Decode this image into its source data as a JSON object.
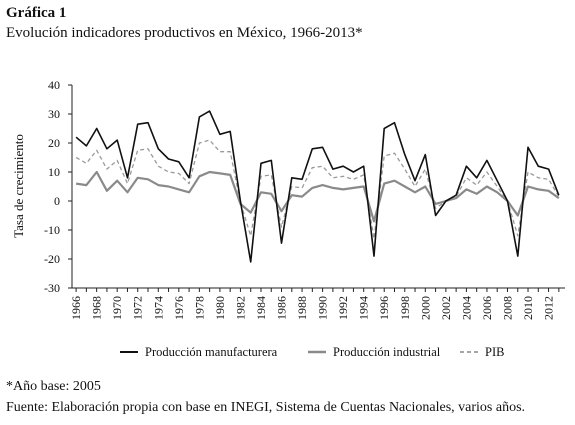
{
  "figure_label": "Gráfica 1",
  "subtitle": "Evolución indicadores productivos en México, 1966-2013*",
  "note": "*Año base: 2005",
  "source": "Fuente: Elaboración propia con base en INEGI, Sistema de Cuentas Nacionales, varios años.",
  "colors": {
    "manufactura": "#111111",
    "industrial": "#8a8a8a",
    "pib": "#9a9a9a"
  },
  "chart_data": {
    "type": "line",
    "title": "",
    "xlabel": "",
    "ylabel": "Tasa de crecimiento",
    "ylim": [
      -30,
      40
    ],
    "yticks": [
      -30,
      -20,
      -10,
      0,
      10,
      20,
      30,
      40
    ],
    "xticks": [
      "1966",
      "1968",
      "1970",
      "1972",
      "1974",
      "1976",
      "1978",
      "1980",
      "1982",
      "1984",
      "1986",
      "1988",
      "1990",
      "1992",
      "1994",
      "1996",
      "1998",
      "2000",
      "2002",
      "2004",
      "2006",
      "2008",
      "2010",
      "2012"
    ],
    "x": [
      1966,
      1967,
      1968,
      1969,
      1970,
      1971,
      1972,
      1973,
      1974,
      1975,
      1976,
      1977,
      1978,
      1979,
      1980,
      1981,
      1982,
      1983,
      1984,
      1985,
      1986,
      1987,
      1988,
      1989,
      1990,
      1991,
      1992,
      1993,
      1994,
      1995,
      1996,
      1997,
      1998,
      1999,
      2000,
      2001,
      2002,
      2003,
      2004,
      2005,
      2006,
      2007,
      2008,
      2009,
      2010,
      2011,
      2012,
      2013
    ],
    "legend_position": "bottom",
    "series": [
      {
        "name": "Producción manufacturera",
        "style": "solid",
        "values": [
          22,
          19,
          25,
          18,
          21,
          8,
          26.5,
          27,
          18,
          14.5,
          13.5,
          8,
          29,
          31,
          23,
          24,
          0,
          -21,
          13,
          14,
          -14.5,
          8,
          7.5,
          18,
          18.5,
          11,
          12,
          10,
          12,
          -19,
          25,
          27,
          16,
          7,
          16,
          -5,
          0,
          2,
          12,
          8,
          14,
          7,
          0,
          -19,
          18.5,
          12,
          11,
          2
        ]
      },
      {
        "name": "Producción industrial",
        "style": "solid",
        "values": [
          6,
          5.5,
          10,
          3.5,
          7,
          3,
          8,
          7.5,
          5.5,
          5,
          4,
          3,
          8.5,
          10,
          9.5,
          9,
          -1,
          -4,
          3,
          2.5,
          -3.5,
          2,
          1.5,
          4.5,
          5.5,
          4.5,
          4,
          4.5,
          5,
          -7,
          6,
          7,
          5,
          3,
          5,
          -1,
          0,
          1,
          4,
          2.5,
          5,
          3,
          0,
          -5,
          5,
          4,
          3.5,
          1
        ]
      },
      {
        "name": "PIB",
        "style": "dashed",
        "values": [
          15,
          13,
          17.5,
          11,
          14,
          6,
          17.5,
          18,
          12,
          10,
          9.5,
          6,
          20,
          21,
          17,
          17,
          -0.5,
          -12,
          8.5,
          9,
          -9,
          5,
          4.5,
          11.5,
          12,
          8,
          8.5,
          7.5,
          9,
          -13,
          15.5,
          16.5,
          11,
          5,
          11,
          -2.5,
          0,
          1.5,
          8,
          5.5,
          10,
          5,
          0,
          -12,
          10,
          8,
          7.5,
          1.5
        ]
      }
    ]
  }
}
